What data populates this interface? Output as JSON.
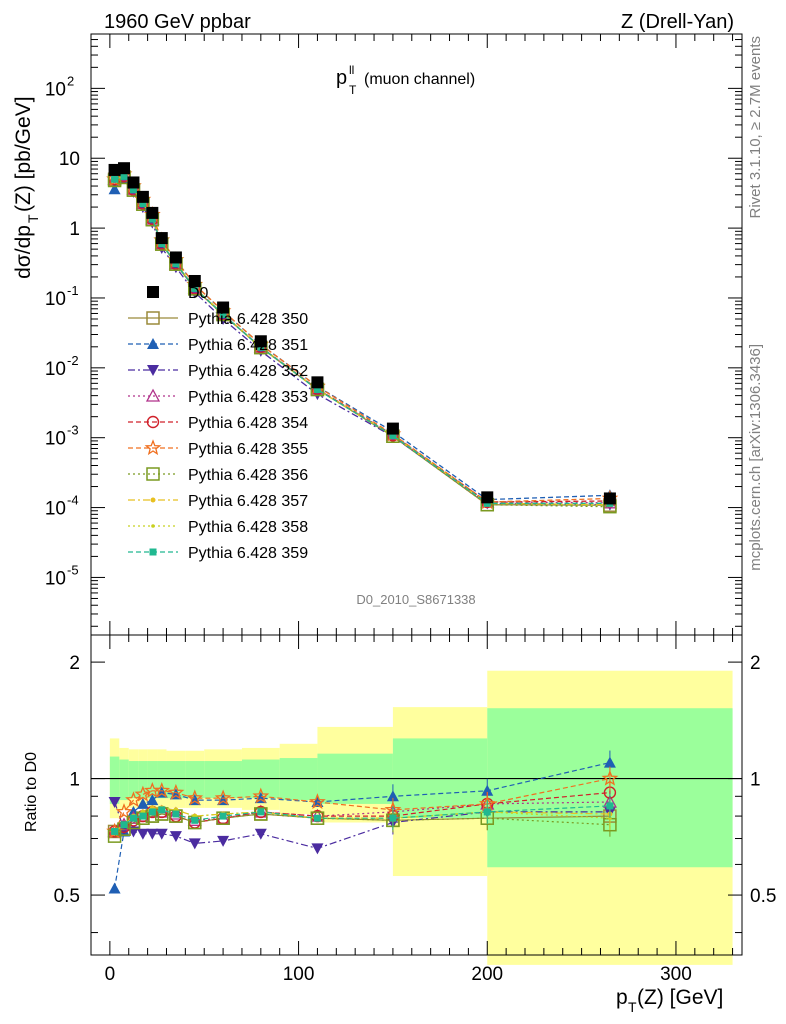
{
  "header": {
    "left": "1960 GeV ppbar",
    "right": "Z (Drell-Yan)"
  },
  "side_text": {
    "rivet": "Rivet 3.1.10, ≥ 2.7M events",
    "mcplots": "mcplots.cern.ch [arXiv:1306.3436]"
  },
  "analysis_id": "D0_2010_S8671338",
  "inset": {
    "label_main": "p",
    "label_sup": "ll",
    "label_sub": "T",
    "label_rest": "(muon channel)"
  },
  "axes": {
    "ylabel_main": "dσ/dp",
    "ylabel_sub": "T",
    "ylabel_rest": "(Z) [pb/GeV]",
    "xlabel_main": "p",
    "xlabel_sub": "T",
    "xlabel_rest": "(Z) [GeV]",
    "ratio_ylabel": "Ratio to D0",
    "x_ticks": [
      "0",
      "100",
      "200",
      "300"
    ],
    "ratio_ticks": [
      "0.5",
      "1",
      "2"
    ]
  },
  "chart_data": [
    {
      "type": "scatter",
      "panel": "main",
      "title": "",
      "xlabel": "pT(Z) [GeV]",
      "ylabel": "dσ/dpT(Z) [pb/GeV]",
      "xlim": [
        -10,
        335
      ],
      "ylim": [
        1.5e-06,
        600
      ],
      "yscale": "log",
      "legend_position": "middle-left",
      "x": [
        2.5,
        7.5,
        12.5,
        17.5,
        22.5,
        27.5,
        35,
        45,
        60,
        80,
        110,
        150,
        200,
        265
      ],
      "series": [
        {
          "name": "D0",
          "color": "#000000",
          "marker": "square-filled",
          "line": "none",
          "values": [
            6.8,
            7.2,
            4.5,
            2.8,
            1.65,
            0.72,
            0.38,
            0.175,
            0.073,
            0.024,
            0.0062,
            0.00135,
            0.00014,
            0.000135
          ]
        },
        {
          "name": "Pythia 6.428 350",
          "color": "#9a8a3a",
          "marker": "square-open",
          "line": "solid",
          "values": [
            5.0,
            5.4,
            3.5,
            2.2,
            1.32,
            0.59,
            0.305,
            0.135,
            0.058,
            0.0195,
            0.0049,
            0.00105,
            0.00011,
            0.000108
          ]
        },
        {
          "name": "Pythia 6.428 351",
          "color": "#1f5fb4",
          "marker": "triangle-up",
          "line": "dashed",
          "values": [
            3.6,
            5.2,
            3.7,
            2.4,
            1.45,
            0.66,
            0.345,
            0.155,
            0.064,
            0.0215,
            0.0054,
            0.00122,
            0.00013,
            0.00015
          ]
        },
        {
          "name": "Pythia 6.428 352",
          "color": "#4b2ca0",
          "marker": "triangle-down",
          "line": "dashdot",
          "values": [
            5.9,
            5.4,
            3.3,
            2.0,
            1.2,
            0.52,
            0.275,
            0.12,
            0.05,
            0.0175,
            0.0042,
            0.00104,
            0.000115,
            0.00011
          ]
        },
        {
          "name": "Pythia 6.428 353",
          "color": "#b0308a",
          "marker": "triangle-open",
          "line": "dotted",
          "values": [
            5.0,
            5.6,
            3.6,
            2.25,
            1.35,
            0.6,
            0.31,
            0.138,
            0.058,
            0.0198,
            0.005,
            0.0011,
            0.00012,
            0.000117
          ]
        },
        {
          "name": "Pythia 6.428 354",
          "color": "#d0202a",
          "marker": "circle-open",
          "line": "dashed",
          "values": [
            5.0,
            5.5,
            3.55,
            2.25,
            1.35,
            0.6,
            0.31,
            0.137,
            0.058,
            0.0198,
            0.005,
            0.00108,
            0.00012,
            0.000124
          ]
        },
        {
          "name": "Pythia 6.428 355",
          "color": "#f07020",
          "marker": "star-open",
          "line": "dashed",
          "values": [
            5.0,
            5.9,
            4.0,
            2.55,
            1.55,
            0.67,
            0.35,
            0.155,
            0.065,
            0.0215,
            0.0054,
            0.00112,
            0.00012,
            0.000135
          ]
        },
        {
          "name": "Pythia 6.428 356",
          "color": "#7a9a20",
          "marker": "square-open",
          "line": "dotted",
          "values": [
            4.8,
            5.3,
            3.5,
            2.2,
            1.32,
            0.59,
            0.305,
            0.135,
            0.058,
            0.0195,
            0.0049,
            0.00105,
            0.00011,
            0.000103
          ]
        },
        {
          "name": "Pythia 6.428 357",
          "color": "#e8c020",
          "marker": "dash-dot-small",
          "line": "dashdot",
          "values": [
            5.0,
            5.5,
            3.6,
            2.3,
            1.38,
            0.61,
            0.315,
            0.14,
            0.059,
            0.0198,
            0.0049,
            0.00107,
            0.000115,
            0.00011
          ]
        },
        {
          "name": "Pythia 6.428 358",
          "color": "#c8d020",
          "marker": "dot-small",
          "line": "dotted",
          "values": [
            5.0,
            5.5,
            3.6,
            2.3,
            1.37,
            0.61,
            0.315,
            0.14,
            0.059,
            0.0198,
            0.0049,
            0.00107,
            0.000115,
            0.000108
          ]
        },
        {
          "name": "Pythia 6.428 359",
          "color": "#20b890",
          "marker": "square-small",
          "line": "dashed",
          "values": [
            5.0,
            5.5,
            3.55,
            2.25,
            1.35,
            0.6,
            0.31,
            0.137,
            0.058,
            0.0197,
            0.0049,
            0.00107,
            0.000115,
            0.000115
          ]
        }
      ]
    },
    {
      "type": "line",
      "panel": "ratio",
      "title": "",
      "xlabel": "pT(Z) [GeV]",
      "ylabel": "Ratio to D0",
      "xlim": [
        -10,
        335
      ],
      "ylim": [
        0.35,
        2.35
      ],
      "yscale": "log",
      "reference_line": 1,
      "bands": {
        "x_edges": [
          0,
          5,
          10,
          15,
          20,
          25,
          30,
          40,
          50,
          70,
          90,
          110,
          150,
          200,
          330
        ],
        "stat_lo": [
          0.86,
          0.88,
          0.89,
          0.89,
          0.89,
          0.89,
          0.89,
          0.89,
          0.89,
          0.89,
          0.88,
          0.86,
          0.79,
          0.59
        ],
        "stat_hi": [
          1.14,
          1.12,
          1.11,
          1.11,
          1.11,
          1.11,
          1.11,
          1.11,
          1.11,
          1.12,
          1.13,
          1.16,
          1.27,
          1.52
        ],
        "total_lo": [
          0.79,
          0.83,
          0.84,
          0.84,
          0.84,
          0.84,
          0.84,
          0.84,
          0.84,
          0.83,
          0.81,
          0.77,
          0.56,
          0.33
        ],
        "total_hi": [
          1.27,
          1.2,
          1.19,
          1.19,
          1.19,
          1.19,
          1.18,
          1.18,
          1.19,
          1.2,
          1.23,
          1.36,
          1.53,
          1.9
        ]
      },
      "series": [
        {
          "name": "Pythia 6.428 350",
          "values": [
            0.73,
            0.74,
            0.77,
            0.79,
            0.8,
            0.81,
            0.8,
            0.77,
            0.79,
            0.81,
            0.79,
            0.78,
            0.79,
            0.8
          ]
        },
        {
          "name": "Pythia 6.428 351",
          "values": [
            0.52,
            0.73,
            0.82,
            0.86,
            0.88,
            0.92,
            0.91,
            0.88,
            0.88,
            0.89,
            0.87,
            0.9,
            0.93,
            1.1
          ]
        },
        {
          "name": "Pythia 6.428 352",
          "values": [
            0.87,
            0.74,
            0.73,
            0.72,
            0.72,
            0.72,
            0.71,
            0.68,
            0.69,
            0.72,
            0.66,
            0.77,
            0.82,
            0.82
          ]
        },
        {
          "name": "Pythia 6.428 353",
          "values": [
            0.73,
            0.76,
            0.79,
            0.8,
            0.82,
            0.82,
            0.81,
            0.78,
            0.79,
            0.82,
            0.8,
            0.82,
            0.86,
            0.87
          ]
        },
        {
          "name": "Pythia 6.428 354",
          "values": [
            0.73,
            0.75,
            0.78,
            0.8,
            0.82,
            0.82,
            0.8,
            0.77,
            0.79,
            0.82,
            0.8,
            0.8,
            0.86,
            0.92
          ]
        },
        {
          "name": "Pythia 6.428 355",
          "values": [
            0.73,
            0.82,
            0.88,
            0.91,
            0.93,
            0.93,
            0.92,
            0.89,
            0.89,
            0.9,
            0.87,
            0.83,
            0.86,
            1.0
          ]
        },
        {
          "name": "Pythia 6.428 356",
          "values": [
            0.71,
            0.74,
            0.77,
            0.79,
            0.8,
            0.81,
            0.8,
            0.77,
            0.79,
            0.81,
            0.79,
            0.78,
            0.79,
            0.76
          ]
        },
        {
          "name": "Pythia 6.428 357",
          "values": [
            0.73,
            0.76,
            0.8,
            0.82,
            0.84,
            0.84,
            0.83,
            0.8,
            0.81,
            0.82,
            0.79,
            0.79,
            0.82,
            0.81
          ]
        },
        {
          "name": "Pythia 6.428 358",
          "values": [
            0.73,
            0.76,
            0.8,
            0.82,
            0.83,
            0.84,
            0.83,
            0.8,
            0.81,
            0.82,
            0.79,
            0.79,
            0.82,
            0.79
          ]
        },
        {
          "name": "Pythia 6.428 359",
          "values": [
            0.73,
            0.76,
            0.79,
            0.8,
            0.82,
            0.83,
            0.81,
            0.78,
            0.8,
            0.82,
            0.79,
            0.79,
            0.82,
            0.85
          ]
        }
      ]
    }
  ]
}
